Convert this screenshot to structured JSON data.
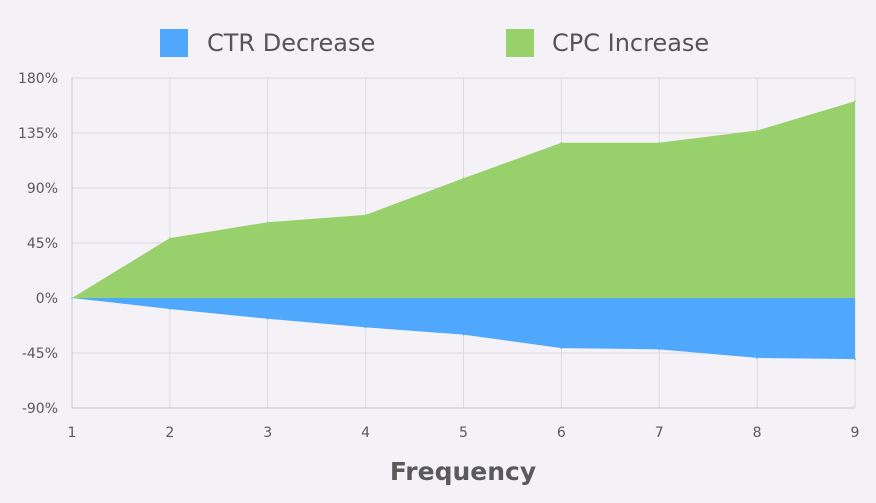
{
  "chart_data": {
    "type": "area",
    "title": "",
    "xlabel": "Frequency",
    "ylabel": "",
    "x": [
      1,
      2,
      3,
      4,
      5,
      6,
      7,
      8,
      9
    ],
    "ylim": [
      -90,
      180
    ],
    "yticks": [
      -90,
      -45,
      0,
      45,
      90,
      135,
      180
    ],
    "ytick_labels": [
      "-90%",
      "-45%",
      "0%",
      "45%",
      "90%",
      "135%",
      "180%"
    ],
    "xtick_labels": [
      "1",
      "2",
      "3",
      "4",
      "5",
      "6",
      "7",
      "8",
      "9"
    ],
    "grid": true,
    "legend_position": "top",
    "series": [
      {
        "name": "CTR Decrease",
        "color": "#4fa8fb",
        "values": [
          0,
          -9,
          -17,
          -24,
          -30,
          -41,
          -42,
          -49,
          -50
        ]
      },
      {
        "name": "CPC Increase",
        "color": "#98d06b",
        "values": [
          0,
          49,
          62,
          68,
          98,
          127,
          127,
          137,
          161
        ]
      }
    ]
  }
}
